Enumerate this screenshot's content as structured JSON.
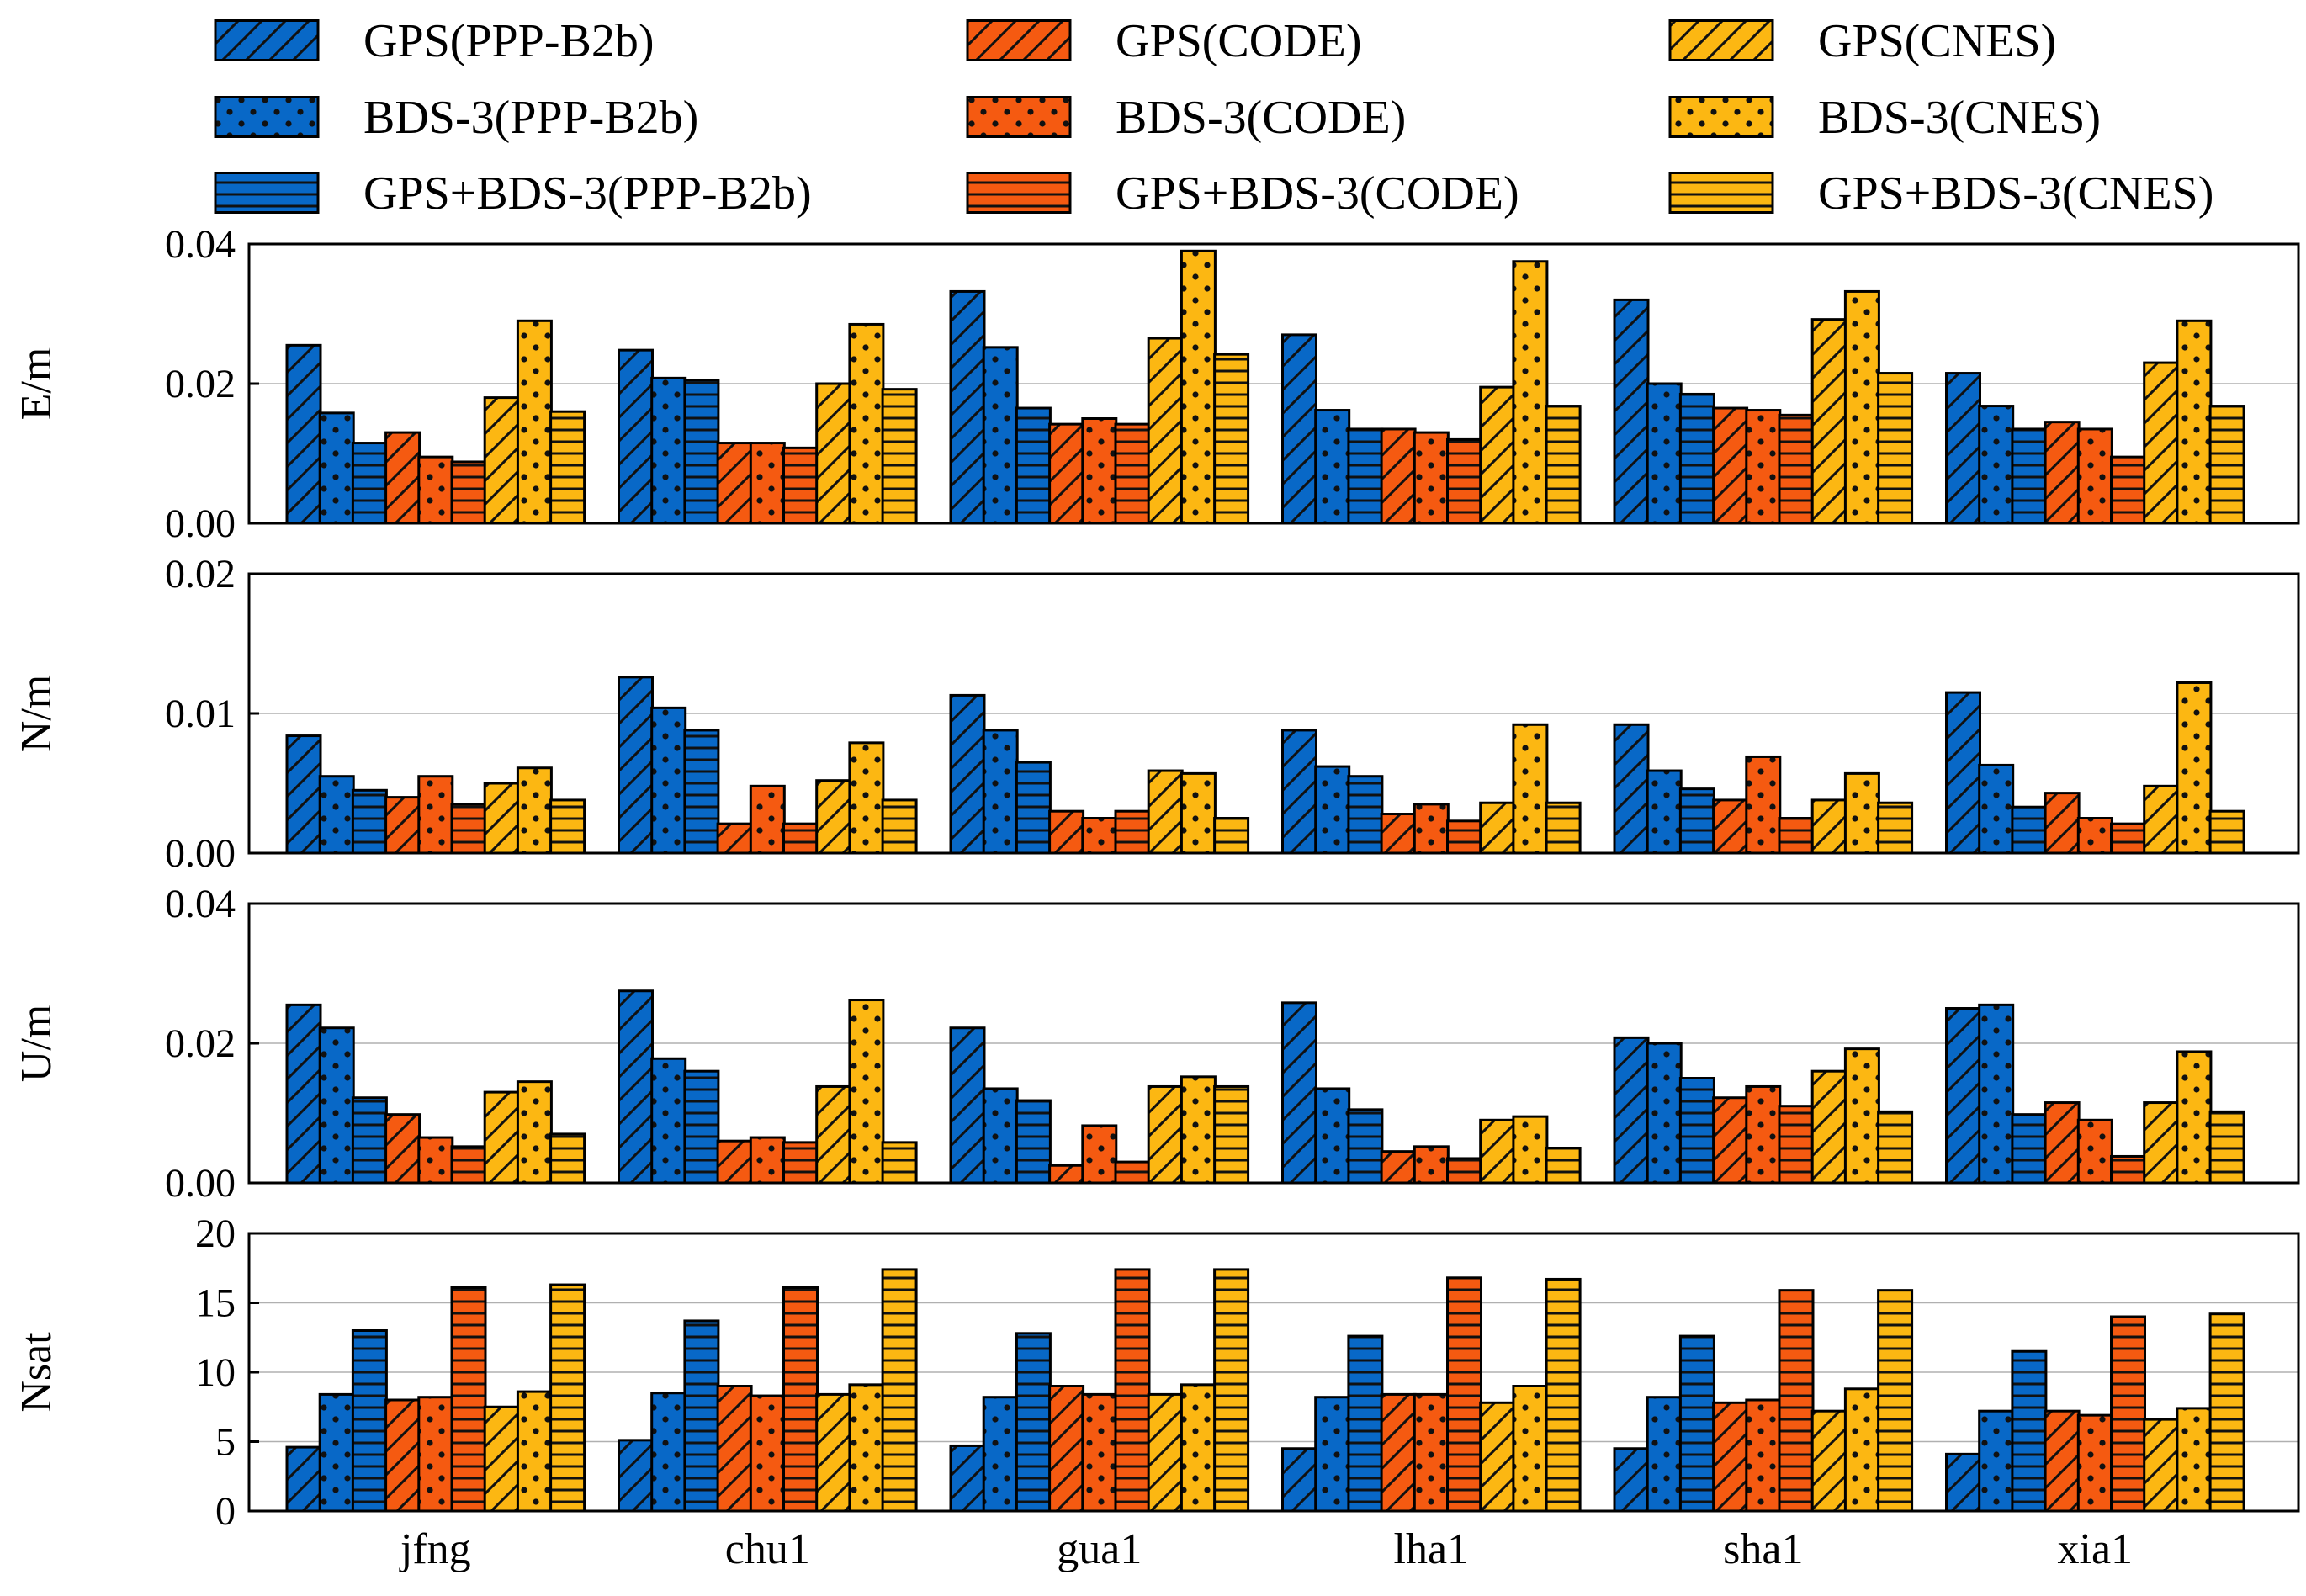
{
  "chart_data": {
    "type": "bar",
    "categories": [
      "jfng",
      "chu1",
      "gua1",
      "lha1",
      "sha1",
      "xia1"
    ],
    "legend": [
      {
        "key": "gps_b2b",
        "label": "GPS(PPP-B2b)",
        "color": "#0868c7",
        "pattern": "diagonal"
      },
      {
        "key": "bds_b2b",
        "label": "BDS-3(PPP-B2b)",
        "color": "#0868c7",
        "pattern": "dots"
      },
      {
        "key": "comb_b2b",
        "label": "GPS+BDS-3(PPP-B2b)",
        "color": "#0868c7",
        "pattern": "horizontal"
      },
      {
        "key": "gps_code",
        "label": "GPS(CODE)",
        "color": "#f55a11",
        "pattern": "diagonal"
      },
      {
        "key": "bds_code",
        "label": "BDS-3(CODE)",
        "color": "#f55a11",
        "pattern": "dots"
      },
      {
        "key": "comb_code",
        "label": "GPS+BDS-3(CODE)",
        "color": "#f55a11",
        "pattern": "horizontal"
      },
      {
        "key": "gps_cnes",
        "label": "GPS(CNES)",
        "color": "#fcb712",
        "pattern": "diagonal"
      },
      {
        "key": "bds_cnes",
        "label": "BDS-3(CNES)",
        "color": "#fcb712",
        "pattern": "dots"
      },
      {
        "key": "comb_cnes",
        "label": "GPS+BDS-3(CNES)",
        "color": "#fcb712",
        "pattern": "horizontal"
      }
    ],
    "panels": [
      {
        "ylabel": "E/m",
        "ylim": [
          0,
          0.04
        ],
        "yticks": [
          "0.00",
          "0.02",
          "0.04"
        ],
        "ytick_values": [
          0,
          0.02,
          0.04
        ],
        "series": [
          [
            0.0255,
            0.0158,
            0.0115,
            0.013,
            0.0095,
            0.0088,
            0.018,
            0.029,
            0.016
          ],
          [
            0.0248,
            0.0208,
            0.0205,
            0.0115,
            0.0115,
            0.0108,
            0.02,
            0.0285,
            0.0192
          ],
          [
            0.0332,
            0.0252,
            0.0165,
            0.0142,
            0.015,
            0.0142,
            0.0265,
            0.039,
            0.0242
          ],
          [
            0.027,
            0.0162,
            0.0135,
            0.0135,
            0.013,
            0.012,
            0.0195,
            0.0375,
            0.0168
          ],
          [
            0.032,
            0.02,
            0.0185,
            0.0165,
            0.0162,
            0.0155,
            0.0292,
            0.0332,
            0.0215
          ],
          [
            0.0215,
            0.0168,
            0.0135,
            0.0145,
            0.0135,
            0.0095,
            0.023,
            0.029,
            0.0168
          ]
        ]
      },
      {
        "ylabel": "N/m",
        "ylim": [
          0,
          0.02
        ],
        "yticks": [
          "0.00",
          "0.01",
          "0.02"
        ],
        "ytick_values": [
          0,
          0.01,
          0.02
        ],
        "series": [
          [
            0.0084,
            0.0055,
            0.0045,
            0.004,
            0.0055,
            0.0035,
            0.005,
            0.0061,
            0.0038
          ],
          [
            0.0126,
            0.0104,
            0.0088,
            0.0021,
            0.0048,
            0.0021,
            0.0052,
            0.0079,
            0.0038
          ],
          [
            0.0113,
            0.0088,
            0.0065,
            0.003,
            0.0025,
            0.003,
            0.0059,
            0.0057,
            0.0025
          ],
          [
            0.0088,
            0.0062,
            0.0055,
            0.0028,
            0.0035,
            0.0023,
            0.0036,
            0.0092,
            0.0036
          ],
          [
            0.0092,
            0.0059,
            0.0046,
            0.0038,
            0.0069,
            0.0025,
            0.0038,
            0.0057,
            0.0036
          ],
          [
            0.0115,
            0.0063,
            0.0033,
            0.0043,
            0.0025,
            0.0021,
            0.0048,
            0.0122,
            0.003
          ]
        ]
      },
      {
        "ylabel": "U/m",
        "ylim": [
          0,
          0.04
        ],
        "yticks": [
          "0.00",
          "0.02",
          "0.04"
        ],
        "ytick_values": [
          0,
          0.02,
          0.04
        ],
        "series": [
          [
            0.0255,
            0.0222,
            0.0122,
            0.0098,
            0.0065,
            0.0052,
            0.013,
            0.0145,
            0.007
          ],
          [
            0.0275,
            0.0178,
            0.016,
            0.006,
            0.0065,
            0.0058,
            0.0138,
            0.0262,
            0.0058
          ],
          [
            0.0222,
            0.0135,
            0.0118,
            0.0025,
            0.0082,
            0.003,
            0.0138,
            0.0152,
            0.0138
          ],
          [
            0.0258,
            0.0135,
            0.0105,
            0.0045,
            0.0052,
            0.0035,
            0.009,
            0.0095,
            0.005
          ],
          [
            0.0208,
            0.02,
            0.015,
            0.0122,
            0.0138,
            0.011,
            0.016,
            0.0192,
            0.0102
          ],
          [
            0.025,
            0.0255,
            0.0098,
            0.0115,
            0.009,
            0.0038,
            0.0115,
            0.0188,
            0.0102
          ]
        ]
      },
      {
        "ylabel": "Nsat",
        "ylim": [
          0,
          20
        ],
        "yticks": [
          "0",
          "5",
          "10",
          "15",
          "20"
        ],
        "ytick_values": [
          0,
          5,
          10,
          15,
          20
        ],
        "series": [
          [
            4.6,
            8.4,
            13.0,
            8.0,
            8.2,
            16.1,
            7.5,
            8.6,
            16.3
          ],
          [
            5.1,
            8.5,
            13.7,
            9.0,
            8.3,
            16.1,
            8.4,
            9.1,
            17.4
          ],
          [
            4.7,
            8.2,
            12.8,
            9.0,
            8.4,
            17.4,
            8.4,
            9.1,
            17.4
          ],
          [
            4.5,
            8.2,
            12.6,
            8.4,
            8.4,
            16.8,
            7.8,
            9.0,
            16.7
          ],
          [
            4.5,
            8.2,
            12.6,
            7.8,
            8.0,
            15.9,
            7.2,
            8.8,
            15.9
          ],
          [
            4.1,
            7.2,
            11.5,
            7.2,
            6.9,
            14.0,
            6.6,
            7.4,
            14.2
          ]
        ]
      }
    ]
  }
}
